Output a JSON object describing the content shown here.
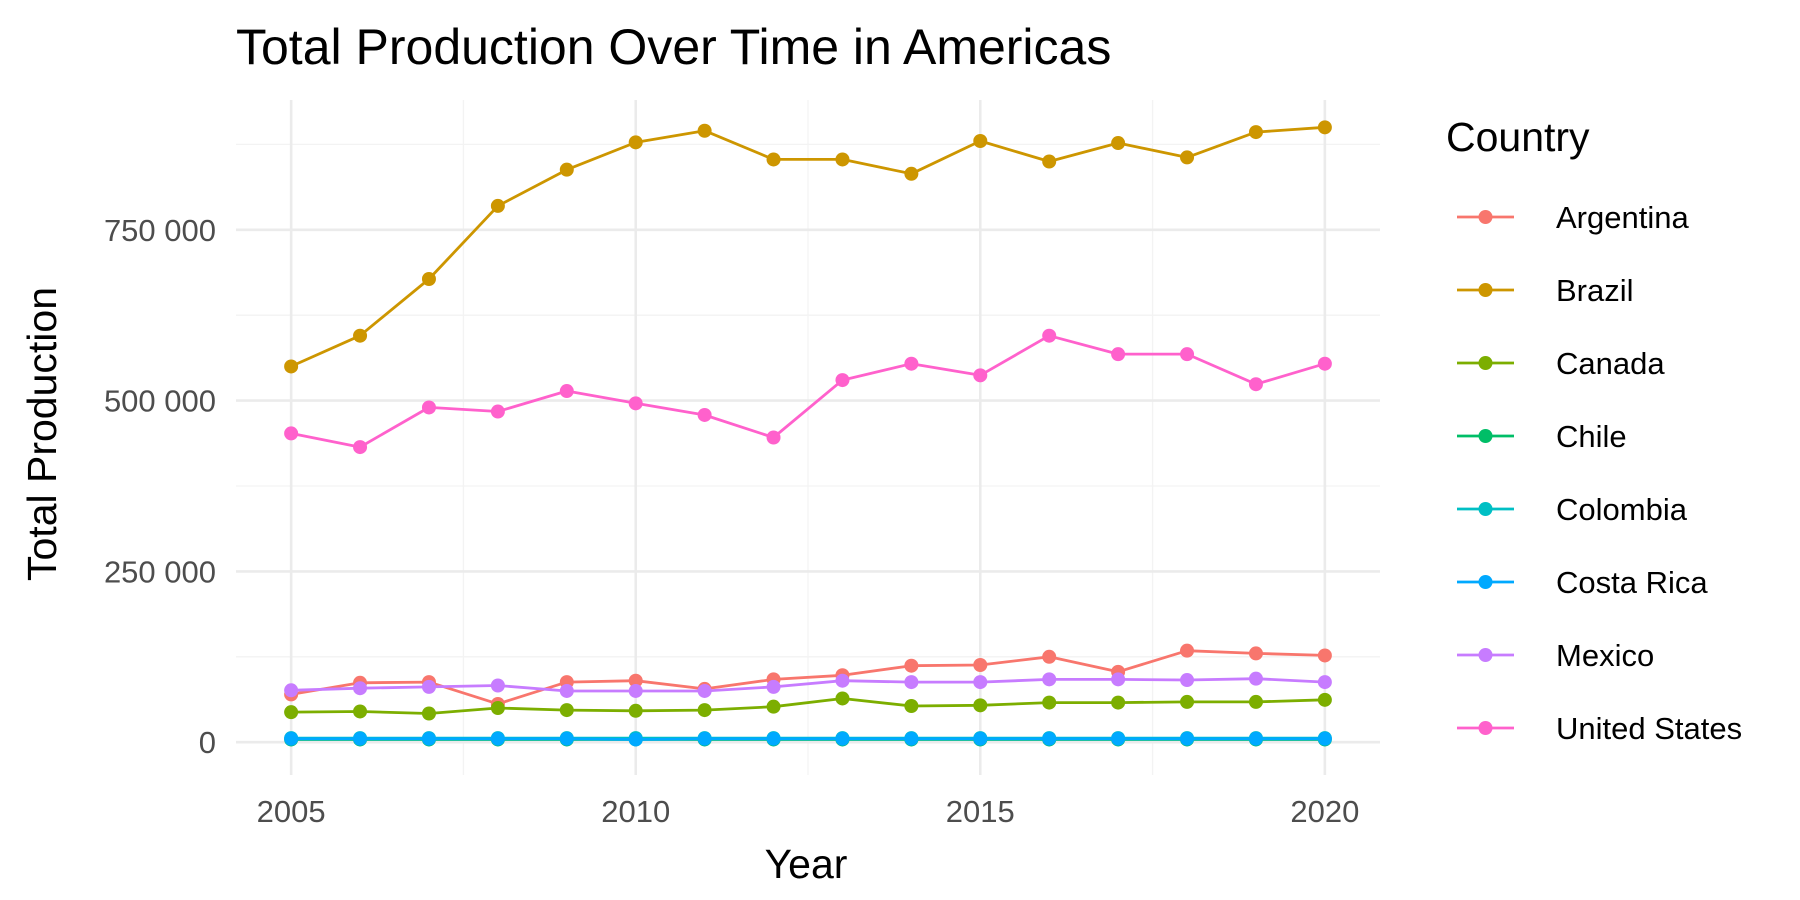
{
  "chart_data": {
    "type": "line",
    "title": "Total Production Over Time in Americas",
    "xlabel": "Year",
    "ylabel": "Total Production",
    "x": [
      2005,
      2006,
      2007,
      2008,
      2009,
      2010,
      2011,
      2012,
      2013,
      2014,
      2015,
      2016,
      2017,
      2018,
      2019,
      2020
    ],
    "xlim": [
      2004.2,
      2020.8
    ],
    "ylim": [
      -48000,
      940000
    ],
    "x_ticks": [
      2005,
      2010,
      2015,
      2020
    ],
    "x_tick_labels": [
      "2005",
      "2010",
      "2015",
      "2020"
    ],
    "y_ticks": [
      0,
      250000,
      500000,
      750000
    ],
    "y_tick_labels": [
      "0",
      "250 000",
      "500 000",
      "750 000"
    ],
    "grid": true,
    "legend_title": "Country",
    "legend_position": "right",
    "series": [
      {
        "name": "Argentina",
        "color": "#F8766D",
        "values": [
          70000,
          87000,
          88000,
          56000,
          88000,
          90000,
          78000,
          92000,
          98000,
          112000,
          113000,
          125000,
          103000,
          134000,
          130000,
          127000
        ]
      },
      {
        "name": "Brazil",
        "color": "#CD9600",
        "values": [
          550000,
          595000,
          678000,
          785000,
          838000,
          878000,
          895000,
          853000,
          853000,
          832000,
          880000,
          850000,
          877000,
          856000,
          893000,
          900000
        ]
      },
      {
        "name": "Canada",
        "color": "#7CAE00",
        "values": [
          44000,
          45000,
          42000,
          50000,
          47000,
          46000,
          47000,
          52000,
          64000,
          53000,
          54000,
          58000,
          58000,
          59000,
          59000,
          62000
        ]
      },
      {
        "name": "Chile",
        "color": "#00BE67",
        "values": [
          4000,
          4000,
          4000,
          4000,
          4000,
          4000,
          4000,
          4000,
          4000,
          4000,
          4000,
          4000,
          4000,
          4000,
          4000,
          4000
        ]
      },
      {
        "name": "Colombia",
        "color": "#00BFC4",
        "values": [
          6000,
          6000,
          6000,
          6000,
          6000,
          6000,
          6000,
          6000,
          6000,
          6000,
          6000,
          6000,
          6000,
          6000,
          6000,
          6000
        ]
      },
      {
        "name": "Costa Rica",
        "color": "#00A9FF",
        "values": [
          5000,
          5000,
          5000,
          5000,
          5000,
          4000,
          5000,
          5000,
          5000,
          5000,
          5000,
          5000,
          5000,
          5000,
          5000,
          5000
        ]
      },
      {
        "name": "Mexico",
        "color": "#C77CFF",
        "values": [
          76000,
          79000,
          81000,
          83000,
          75000,
          75000,
          75000,
          81000,
          90000,
          88000,
          88000,
          92000,
          92000,
          91000,
          93000,
          88000
        ]
      },
      {
        "name": "United States",
        "color": "#FF61CC",
        "values": [
          452000,
          432000,
          490000,
          484000,
          514000,
          496000,
          479000,
          446000,
          530000,
          554000,
          537000,
          595000,
          568000,
          568000,
          524000,
          554000
        ]
      }
    ]
  }
}
